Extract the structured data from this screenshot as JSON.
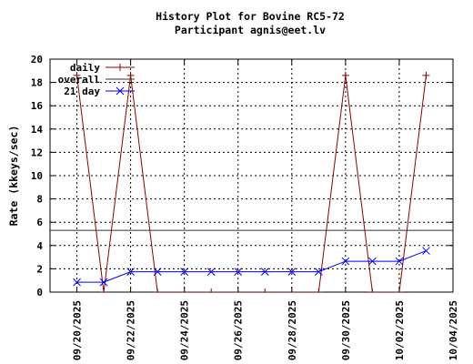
{
  "chart_data": {
    "type": "line",
    "title": "History Plot for Bovine RC5-72",
    "subtitle": "Participant agnis@eet.lv",
    "ylabel": "Rate (kkeys/sec)",
    "xlabel": "",
    "ylim": [
      0,
      20
    ],
    "y_ticks": [
      "0",
      "2",
      "4",
      "6",
      "8",
      "10",
      "12",
      "14",
      "16",
      "18",
      "20"
    ],
    "x_ticks": [
      "09/20/2025",
      "09/22/2025",
      "09/24/2025",
      "09/26/2025",
      "09/28/2025",
      "09/30/2025",
      "10/02/2025",
      "10/04/2025"
    ],
    "x_range": [
      "2025-09-19",
      "2025-10-04"
    ],
    "grid": true,
    "legend_position": "top-left",
    "series": [
      {
        "name": "daily",
        "color": "#8b0000",
        "marker": "plus",
        "points": [
          {
            "x": "2025-09-20",
            "y": 18.6
          },
          {
            "x": "2025-09-21",
            "y": 0
          },
          {
            "x": "2025-09-22",
            "y": 18.6
          },
          {
            "x": "2025-09-23",
            "y": 0
          },
          {
            "x": "2025-09-24",
            "y": 0
          },
          {
            "x": "2025-09-25",
            "y": 0
          },
          {
            "x": "2025-09-26",
            "y": 0
          },
          {
            "x": "2025-09-27",
            "y": 0
          },
          {
            "x": "2025-09-28",
            "y": 0
          },
          {
            "x": "2025-09-29",
            "y": 0
          },
          {
            "x": "2025-09-30",
            "y": 18.6
          },
          {
            "x": "2025-10-01",
            "y": 0
          },
          {
            "x": "2025-10-02",
            "y": 0
          },
          {
            "x": "2025-10-03",
            "y": 18.6
          }
        ]
      },
      {
        "name": "overall",
        "color": "#333333",
        "marker": "none",
        "constant": 5.3
      },
      {
        "name": "21 day",
        "color": "#0000ff",
        "marker": "x",
        "points": [
          {
            "x": "2025-09-20",
            "y": 0.85
          },
          {
            "x": "2025-09-21",
            "y": 0.85
          },
          {
            "x": "2025-09-22",
            "y": 1.75
          },
          {
            "x": "2025-09-23",
            "y": 1.75
          },
          {
            "x": "2025-09-24",
            "y": 1.75
          },
          {
            "x": "2025-09-25",
            "y": 1.75
          },
          {
            "x": "2025-09-26",
            "y": 1.75
          },
          {
            "x": "2025-09-27",
            "y": 1.75
          },
          {
            "x": "2025-09-28",
            "y": 1.75
          },
          {
            "x": "2025-09-29",
            "y": 1.75
          },
          {
            "x": "2025-09-30",
            "y": 2.65
          },
          {
            "x": "2025-10-01",
            "y": 2.65
          },
          {
            "x": "2025-10-02",
            "y": 2.65
          },
          {
            "x": "2025-10-03",
            "y": 3.55
          }
        ]
      }
    ]
  }
}
